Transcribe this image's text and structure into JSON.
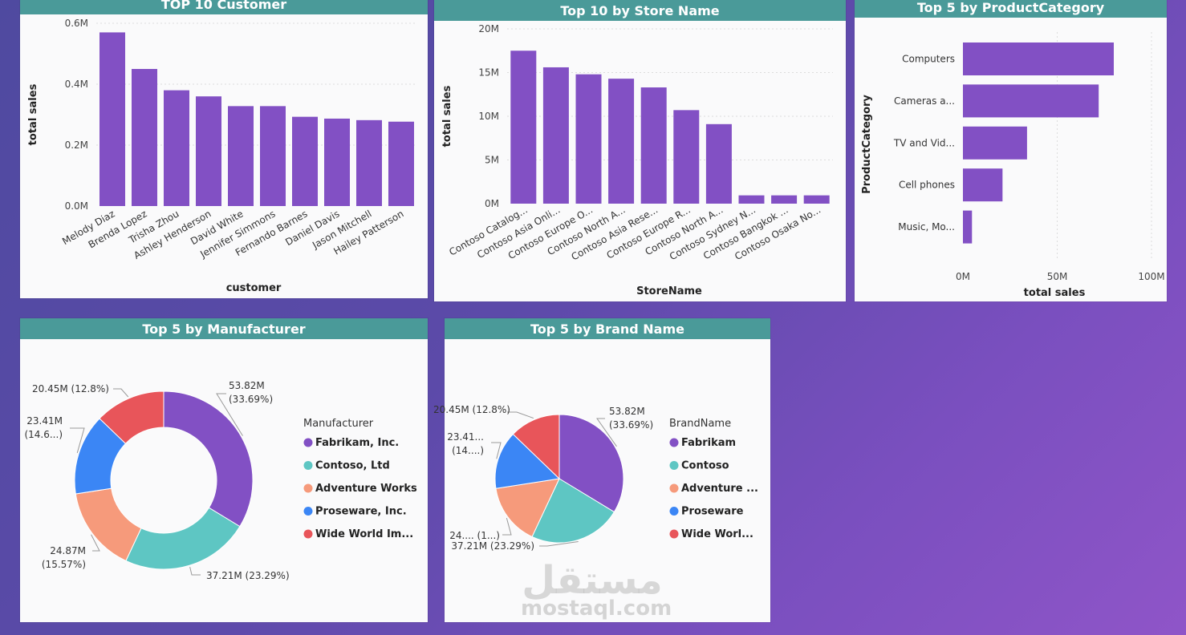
{
  "colors": {
    "bar": "#8250c4",
    "header": "#4a9a99",
    "grid": "#dcdcdc",
    "slices": [
      "#8250c4",
      "#5ec6c3",
      "#f69a7b",
      "#3b86f5",
      "#e8555a"
    ]
  },
  "panels": {
    "customer": {
      "title": "TOP 10 Customer",
      "chart_data": {
        "type": "bar",
        "title": "TOP 10 Customer",
        "xlabel": "customer",
        "ylabel": "total sales",
        "ylim": [
          0,
          600000
        ],
        "yticks": [
          "0.0M",
          "0.2M",
          "0.4M",
          "0.6M"
        ],
        "ytick_values": [
          0,
          200000,
          400000,
          600000
        ],
        "categories": [
          "Melody Diaz",
          "Brenda Lopez",
          "Trisha Zhou",
          "Ashley Henderson",
          "David White",
          "Jennifer Simmons",
          "Fernando Barnes",
          "Daniel Davis",
          "Jason Mitchell",
          "Hailey Patterson"
        ],
        "values": [
          570000,
          450000,
          380000,
          360000,
          328000,
          328000,
          293000,
          287000,
          282000,
          277000
        ],
        "grid": true
      }
    },
    "store": {
      "title": "Top 10 by Store Name",
      "chart_data": {
        "type": "bar",
        "title": "Top 10 by Store Name",
        "xlabel": "StoreName",
        "ylabel": "total sales",
        "ylim": [
          0,
          20000000
        ],
        "yticks": [
          "0M",
          "5M",
          "10M",
          "15M",
          "20M"
        ],
        "ytick_values": [
          0,
          5000000,
          10000000,
          15000000,
          20000000
        ],
        "categories": [
          "Contoso Catalog...",
          "Contoso Asia Onli...",
          "Contoso Europe O...",
          "Contoso North A...",
          "Contoso Asia Rese...",
          "Contoso Europe R...",
          "Contoso North A...",
          "Contoso Sydney N...",
          "Contoso Bangkok ...",
          "Contoso Osaka No..."
        ],
        "values": [
          17500000,
          15600000,
          14800000,
          14300000,
          13300000,
          10700000,
          9100000,
          950000,
          950000,
          950000
        ],
        "grid": true
      }
    },
    "category": {
      "title": "Top 5 by ProductCategory",
      "chart_data": {
        "type": "bar",
        "orientation": "horizontal",
        "title": "Top 5 by ProductCategory",
        "xlabel": "total sales",
        "ylabel": "ProductCategory",
        "xlim": [
          0,
          100000000
        ],
        "xticks": [
          "0M",
          "50M",
          "100M"
        ],
        "xtick_values": [
          0,
          50000000,
          100000000
        ],
        "categories": [
          "Computers",
          "Cameras a...",
          "TV and Vid...",
          "Cell phones",
          "Music, Mo..."
        ],
        "values": [
          80000000,
          72000000,
          34000000,
          21000000,
          4800000
        ],
        "grid": true
      }
    },
    "manufacturer": {
      "title": "Top 5 by Manufacturer",
      "legend_title": "Manufacturer",
      "chart_data": {
        "type": "pie",
        "donut": true,
        "title": "Top 5 by Manufacturer",
        "categories": [
          "Fabrikam, Inc.",
          "Contoso, Ltd",
          "Adventure Works",
          "Proseware, Inc.",
          "Wide World Im..."
        ],
        "values": [
          53.82,
          37.21,
          24.87,
          23.41,
          20.45
        ],
        "percents": [
          33.69,
          23.29,
          15.57,
          14.6,
          12.8
        ],
        "labels": [
          [
            "53.82M",
            "(33.69%)"
          ],
          [
            "37.21M (23.29%)"
          ],
          [
            "24.87M",
            "(15.57%)"
          ],
          [
            "23.41M",
            "(14.6...)"
          ],
          [
            "20.45M (12.8%)"
          ]
        ],
        "legend": "right"
      }
    },
    "brand": {
      "title": "Top 5 by Brand Name",
      "legend_title": "BrandName",
      "chart_data": {
        "type": "pie",
        "donut": false,
        "title": "Top 5 by Brand Name",
        "categories": [
          "Fabrikam",
          "Contoso",
          "Adventure ...",
          "Proseware",
          "Wide Worl..."
        ],
        "values": [
          53.82,
          37.21,
          24.87,
          23.41,
          20.45
        ],
        "percents": [
          33.69,
          23.29,
          15.57,
          14.6,
          12.8
        ],
        "labels": [
          [
            "53.82M",
            "(33.69%)"
          ],
          [
            "37.21M (23.29%)"
          ],
          [
            "24.... (1...)"
          ],
          [
            "23.41...",
            "(14....)"
          ],
          [
            "20.45M (12.8%)"
          ]
        ],
        "legend": "right"
      }
    }
  },
  "watermark": {
    "logo_text": "مستقل",
    "site": "mostaql.com"
  }
}
